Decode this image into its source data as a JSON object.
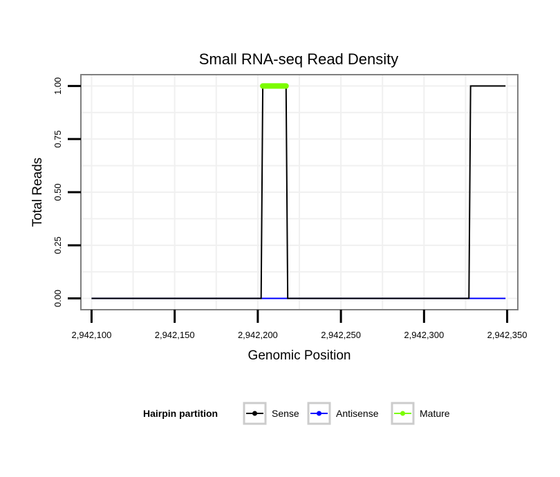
{
  "chart_data": {
    "type": "line",
    "title": "Small RNA-seq Read Density",
    "xlabel": "Genomic Position",
    "ylabel": "Total Reads",
    "xlim": [
      2942094,
      2942356
    ],
    "ylim": [
      -0.05,
      1.05
    ],
    "x_ticks": [
      2942100,
      2942150,
      2942200,
      2942250,
      2942300,
      2942350
    ],
    "x_tick_labels": [
      "2,942,100",
      "2,942,150",
      "2,942,200",
      "2,942,250",
      "2,942,300",
      "2,942,350"
    ],
    "y_ticks": [
      0,
      0.25,
      0.5,
      0.75,
      1.0
    ],
    "y_tick_labels": [
      "0.00",
      "0.25",
      "0.50",
      "0.75",
      "1.00"
    ],
    "grid": true,
    "series": [
      {
        "name": "Sense",
        "color": "#000000",
        "points": [
          [
            2942100,
            0
          ],
          [
            2942202,
            0
          ],
          [
            2942203,
            1
          ],
          [
            2942217,
            1
          ],
          [
            2942218,
            0
          ],
          [
            2942327,
            0
          ],
          [
            2942328,
            1
          ],
          [
            2942349,
            1
          ]
        ]
      },
      {
        "name": "Antisense",
        "color": "#0000ff",
        "points": [
          [
            2942100,
            0
          ],
          [
            2942349,
            0
          ]
        ]
      },
      {
        "name": "Mature",
        "color": "#7cfc00",
        "points": [
          [
            2942203,
            1
          ],
          [
            2942217,
            1
          ]
        ]
      }
    ],
    "legend": {
      "title": "Hairpin partition",
      "position": "bottom",
      "entries": [
        "Sense",
        "Antisense",
        "Mature"
      ]
    }
  }
}
